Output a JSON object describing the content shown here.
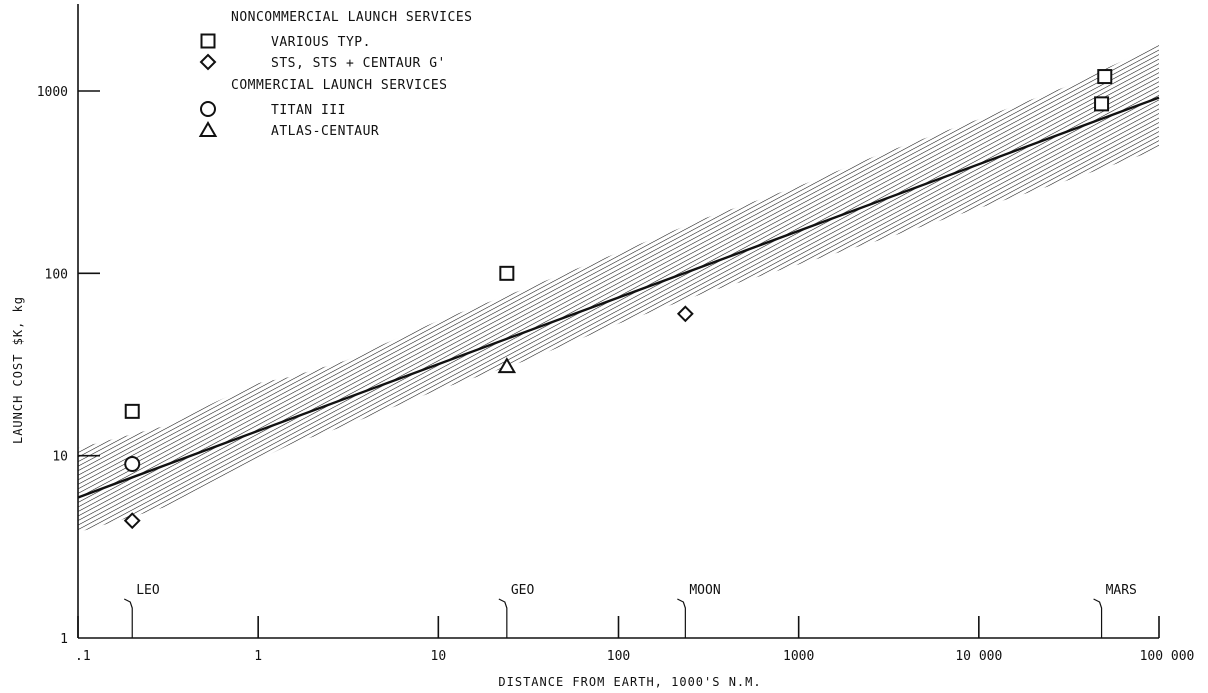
{
  "chart_data": {
    "type": "scatter",
    "title": "",
    "xlabel": "DISTANCE FROM EARTH, 1000'S N.M.",
    "ylabel": "LAUNCH COST $K, kg",
    "x_scale": "log",
    "y_scale": "log",
    "xlim": [
      0.1,
      100000
    ],
    "ylim": [
      1,
      3000
    ],
    "x_ticks": [
      0.1,
      1,
      10,
      100,
      1000,
      10000,
      100000
    ],
    "x_tick_labels": [
      ".1",
      "1",
      "10",
      "100",
      "1000",
      "10 000",
      "100 000"
    ],
    "y_ticks": [
      1,
      10,
      100,
      1000
    ],
    "y_tick_labels": [
      "1",
      "10",
      "100",
      "1000"
    ],
    "grid": false,
    "legend_position": "top-left",
    "legend_groups": [
      {
        "heading": "NONCOMMERCIAL LAUNCH SERVICES",
        "entries": [
          {
            "marker": "square",
            "label": "VARIOUS TYP."
          },
          {
            "marker": "diamond",
            "label": "STS, STS + CENTAUR G'"
          }
        ]
      },
      {
        "heading": "COMMERCIAL LAUNCH SERVICES",
        "entries": [
          {
            "marker": "circle",
            "label": "TITAN III"
          },
          {
            "marker": "triangle",
            "label": "ATLAS-CENTAUR"
          }
        ]
      }
    ],
    "series": [
      {
        "name": "VARIOUS TYP.",
        "marker": "square",
        "points": [
          {
            "x": 0.2,
            "y": 17.5
          },
          {
            "x": 24,
            "y": 100
          },
          {
            "x": 50000,
            "y": 1200
          },
          {
            "x": 48000,
            "y": 850
          }
        ]
      },
      {
        "name": "STS, STS + CENTAUR G'",
        "marker": "diamond",
        "points": [
          {
            "x": 0.2,
            "y": 4.4
          },
          {
            "x": 235,
            "y": 60
          }
        ]
      },
      {
        "name": "TITAN III",
        "marker": "circle",
        "points": [
          {
            "x": 0.2,
            "y": 9
          }
        ]
      },
      {
        "name": "ATLAS-CENTAUR",
        "marker": "triangle",
        "points": [
          {
            "x": 24,
            "y": 31
          }
        ]
      }
    ],
    "trend_line": {
      "x": [
        0.1,
        100000
      ],
      "y": [
        5.9,
        920
      ]
    },
    "uncertainty_band": {
      "x": [
        0.1,
        0.3,
        0.6,
        1,
        1.5,
        3,
        10,
        30,
        100,
        300,
        1000,
        3000,
        10000,
        30000,
        100000
      ],
      "lower": [
        3.8,
        5.2,
        7.5,
        9.5,
        11.5,
        14.5,
        23,
        33,
        53,
        78,
        112,
        155,
        228,
        320,
        480
      ],
      "upper": [
        11,
        14.5,
        20,
        25,
        27,
        33,
        55,
        82,
        130,
        200,
        300,
        460,
        700,
        1050,
        1800
      ]
    },
    "annotations": [
      {
        "label": "LEO",
        "x": 0.2
      },
      {
        "label": "GEO",
        "x": 24
      },
      {
        "label": "MOON",
        "x": 235
      },
      {
        "label": "MARS",
        "x": 48000
      }
    ]
  }
}
